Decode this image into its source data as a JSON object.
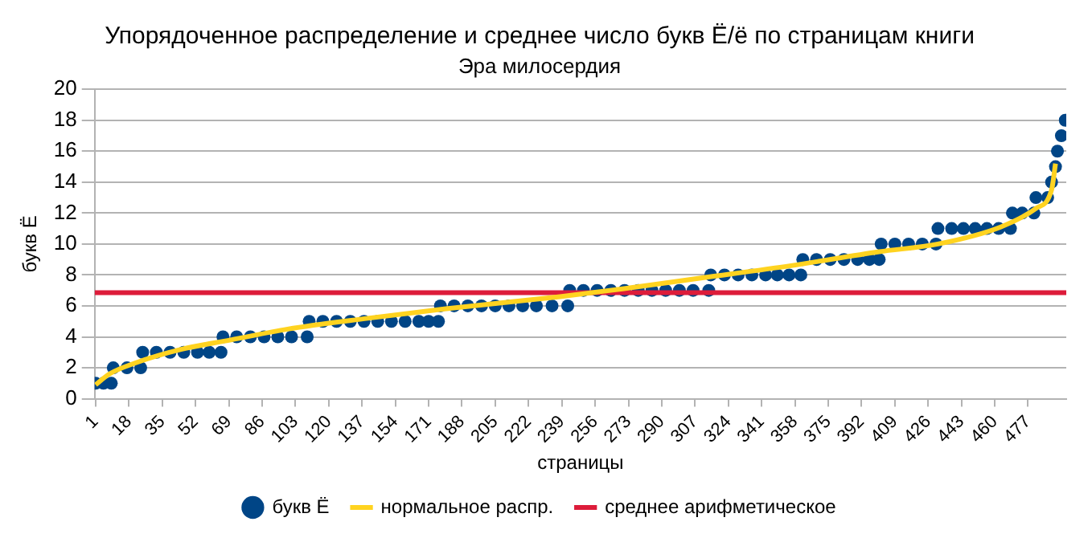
{
  "chart_data": {
    "type": "scatter",
    "title": "Упорядоченное распределение и среднее число букв Ё/ё по страницам книги",
    "subtitle": "Эра милосердия",
    "xlabel": "страницы",
    "ylabel": "букв Ё",
    "series": [
      {
        "name": "букв Ё",
        "type": "scatter",
        "marker": "circle",
        "color": "#004586",
        "x": [
          1,
          5,
          9,
          10,
          17,
          24,
          25,
          32,
          39,
          46,
          53,
          59,
          65,
          66,
          73,
          80,
          87,
          94,
          101,
          109,
          110,
          117,
          124,
          131,
          138,
          145,
          152,
          159,
          166,
          171,
          176,
          177,
          184,
          191,
          198,
          205,
          212,
          219,
          226,
          234,
          242,
          243,
          250,
          257,
          264,
          271,
          278,
          285,
          292,
          299,
          306,
          314,
          315,
          322,
          329,
          336,
          343,
          349,
          355,
          361,
          362,
          369,
          376,
          383,
          390,
          396,
          401,
          402,
          409,
          416,
          423,
          430,
          431,
          438,
          444,
          450,
          456,
          462,
          468,
          469,
          474,
          480,
          481,
          487,
          489,
          491,
          492,
          494,
          496
        ],
        "values": [
          1,
          1,
          1,
          2,
          2,
          2,
          3,
          3,
          3,
          3,
          3,
          3,
          3,
          4,
          4,
          4,
          4,
          4,
          4,
          4,
          5,
          5,
          5,
          5,
          5,
          5,
          5,
          5,
          5,
          5,
          5,
          6,
          6,
          6,
          6,
          6,
          6,
          6,
          6,
          6,
          6,
          7,
          7,
          7,
          7,
          7,
          7,
          7,
          7,
          7,
          7,
          7,
          8,
          8,
          8,
          8,
          8,
          8,
          8,
          8,
          9,
          9,
          9,
          9,
          9,
          9,
          9,
          10,
          10,
          10,
          10,
          10,
          11,
          11,
          11,
          11,
          11,
          11,
          11,
          12,
          12,
          12,
          13,
          13,
          14,
          15,
          16,
          17,
          18
        ]
      },
      {
        "name": "нормальное распр.",
        "type": "line",
        "color": "#ffd320",
        "x": [
          1,
          8,
          21,
          45,
          70,
          99,
          140,
          179,
          238,
          270,
          310,
          356,
          401,
          431,
          463,
          481,
          489,
          491
        ],
        "values": [
          0.9,
          1.6,
          2.3,
          3.2,
          3.8,
          4.5,
          5.2,
          5.8,
          6.6,
          7.1,
          7.8,
          8.6,
          9.5,
          10.0,
          11.1,
          12.3,
          13.5,
          15.2
        ]
      }
    ],
    "ref_lines": [
      {
        "axis": "y",
        "value": 6.85,
        "label": "среднее арифметическое",
        "color": "#dd1c3a"
      }
    ],
    "xlim": [
      0.5,
      496.5
    ],
    "xticks": [
      1,
      18,
      35,
      52,
      69,
      86,
      103,
      120,
      137,
      154,
      171,
      188,
      205,
      222,
      239,
      256,
      273,
      290,
      307,
      324,
      341,
      358,
      375,
      392,
      409,
      426,
      443,
      460,
      477
    ],
    "ylim": [
      0,
      20
    ],
    "yticks": [
      0,
      2,
      4,
      6,
      8,
      10,
      12,
      14,
      16,
      18,
      20
    ],
    "grid": "y",
    "legend": "bottom"
  }
}
